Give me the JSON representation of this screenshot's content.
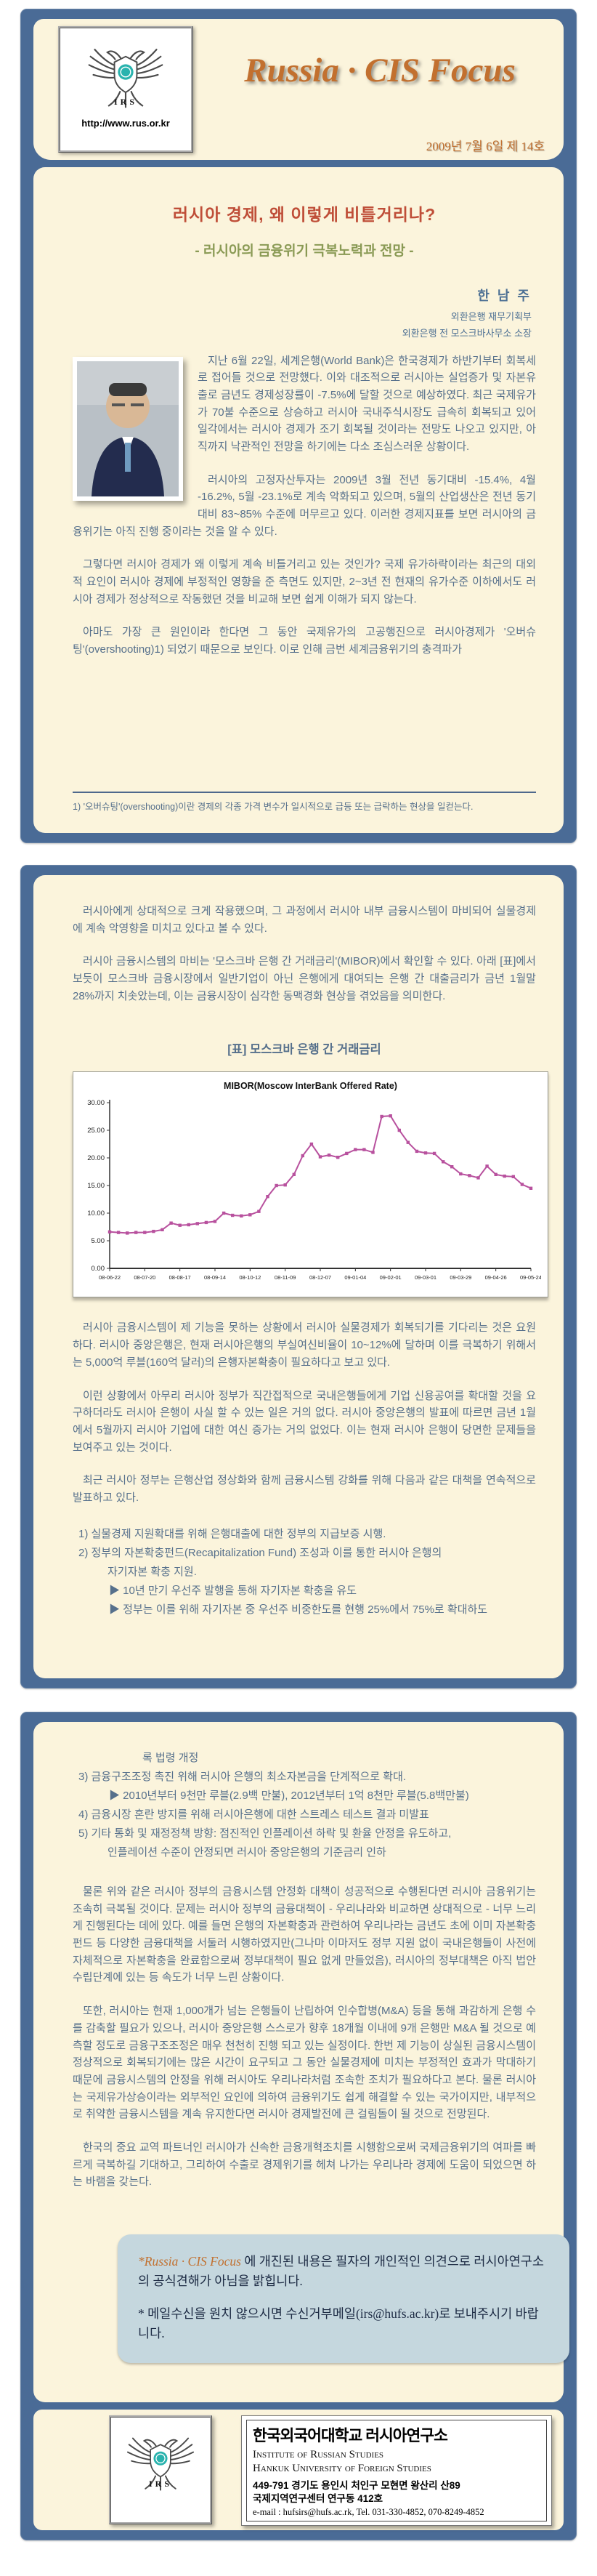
{
  "colors": {
    "card_blue": "#4a6b96",
    "panel_cream": "#fbf4dc",
    "masthead_orange": "#c2702f",
    "article_title_red": "#bf4e38",
    "subtitle_green": "#8a9a55",
    "body_text": "#56708c",
    "chart_line": "#b8519e",
    "notice_bg": "#c5d7de"
  },
  "masthead": {
    "url": "http://www.rus.or.kr",
    "logo_text": "IRS",
    "title": "Russia · CIS Focus",
    "issue": "2009년 7월 6일 제 14호"
  },
  "article": {
    "title": "러시아 경제, 왜 이렇게 비틀거리나?",
    "subtitle": "- 러시아의 금융위기 극복노력과 전망 -",
    "author": {
      "name": "한 남 주",
      "affiliation1": "외환은행 재무기획부",
      "affiliation2": "외환은행 전 모스크바사무소 소장"
    }
  },
  "page1": {
    "paragraphs": [
      "지난 6월 22일, 세계은행(World Bank)은 한국경제가 하반기부터 회복세로 접어들 것으로 전망했다. 이와 대조적으로 러시아는 실업증가 및 자본유출로 금년도 경제성장률이 -7.5%에 달할 것으로 예상하였다. 최근 국제유가가 70불 수준으로 상승하고 러시아 국내주식시장도 급속히 회복되고 있어 일각에서는 러시아 경제가 조기 회복될 것이라는 전망도 나오고 있지만, 아직까지 낙관적인 전망을 하기에는 다소 조심스러운 상황이다.",
      "러시아의 고정자산투자는 2009년 3월 전년  동기대비 -15.4%, 4월 -16.2%, 5월 -23.1%로 계속 악화되고 있으며, 5월의 산업생산은 전년 동기 대비 83~85% 수준에 머무르고 있다. 이러한 경제지표를 보면 러시아의 금융위기는 아직 진행 중이라는 것을 알 수 있다.",
      "그렇다면 러시아 경제가 왜 이렇게 계속 비틀거리고 있는 것인가? 국제 유가하락이라는 최근의 대외적 요인이 러시아 경제에 부정적인 영향을 준 측면도 있지만, 2~3년 전 현재의 유가수준 이하에서도 러시아 경제가 정상적으로 작동했던 것을 비교해 보면 쉽게 이해가 되지 않는다.",
      "아마도 가장 큰 원인이라 한다면 그 동안 국제유가의 고공행진으로 러시아경제가 '오버슈팅'(overshooting)1) 되었기 때문으로 보인다. 이로 인해 금번 세계금융위기의 충격파가"
    ],
    "footnote": "1) '오버슈팅'(overshooting)이란 경제의 각종 가격 변수가 일시적으로 급등 또는 급락하는 현상을 일컫는다."
  },
  "page2": {
    "paragraphs_before": [
      "러시아에게 상대적으로 크게 작용했으며, 그 과정에서 러시아 내부 금융시스템이 마비되어 실물경제에 계속 악영향을 미치고 있다고 볼 수 있다.",
      "러시아 금융시스템의 마비는 '모스크바 은행 간 거래금리'(MIBOR)에서 확인할 수 있다. 아래 [표]에서 보듯이 모스크바 금융시장에서 일반기업이 아닌 은행에게 대여되는 은행 간 대출금리가 금년 1월말 28%까지 치솟았는데, 이는 금융시장이 심각한 동맥경화 현상을 겪었음을 의미한다."
    ],
    "chart_caption": "[표] 모스크바 은행 간 거래금리",
    "paragraphs_after": [
      "러시아 금융시스템이 제 기능을 못하는 상황에서 러시아 실물경제가 회복되기를 기다리는 것은 요원하다. 러시아 중앙은행은, 현재 러시아은행의 부실여신비율이 10~12%에 달하며 이를 극복하기 위해서는 5,000억 루블(160억 달러)의 은행자본확충이 필요하다고 보고 있다.",
      "이런 상황에서 아무리 러시아 정부가 직간접적으로 국내은행들에게 기업 신용공여를 확대할 것을 요구하더라도 러시아 은행이 사실 할 수 있는 일은 거의 없다. 러시아 중앙은행의 발표에 따르면 금년 1월에서 5월까지 러시아 기업에 대한 여신 증가는 거의 없었다. 이는 현재 러시아 은행이 당면한 문제들을 보여주고 있는 것이다.",
      "최근 러시아 정부는 은행산업 정상화와 함께 금융시스템 강화를 위해 다음과 같은 대책을 연속적으로 발표하고 있다."
    ],
    "measures": {
      "item1": "1) 실물경제 지원확대를 위해 은행대출에 대한 정부의 지급보증 시행.",
      "item2a": "2) 정부의 자본확충펀드(Recapitalization Fund) 조성과 이를 통한 러시아 은행의",
      "item2b": "자기자본 확충 지원.",
      "item2_sub1": "▶ 10년 만기 우선주 발행을 통해 자기자본 확충을 유도",
      "item2_sub2": "▶ 정부는 이를 위해 자기자본 중 우선주 비중한도를 현행 25%에서 75%로 확대하도"
    }
  },
  "page3": {
    "measures_cont": {
      "cont_line": "록 법령 개정",
      "item3": "3) 금융구조조정 촉진 위해 러시아 은행의 최소자본금을 단계적으로 확대.",
      "item3_sub": "▶ 2010년부터 9천만 루블(2.9백 만불), 2012년부터 1억 8천만 루블(5.8백만불)",
      "item4": "4) 금융시장 혼란 방지를 위해 러시아은행에 대한 스트레스 테스트 결과 미발표",
      "item5a": "5) 기타 통화 및 재정정책 방향: 점진적인 인플레이션 하락 및 환율 안정을 유도하고,",
      "item5b": "인플레이션 수준이 안정되면 러시아 중앙은행의 기준금리 인하"
    },
    "paragraphs": [
      "물론 위와 같은 러시아 정부의 금융시스템 안정화 대책이 성공적으로 수행된다면 러시아 금융위기는 조속히 극복될 것이다. 문제는 러시아 정부의 금융대책이 - 우리나라와 비교하면 상대적으로 - 너무 느리게 진행된다는 데에 있다. 예를 들면 은행의 자본확충과 관련하여 우리나라는 금년도 초에 이미 자본확충펀드 등 다양한 금융대책을 서둘러 시행하였지만(그나마 이마저도 정부 지원 없이 국내은행들이 사전에 자체적으로 자본확충을 완료함으로써 정부대책이 필요 없게 만들었음), 러시아의 정부대책은 아직 법안 수립단계에 있는 등 속도가 너무 느린 상황이다.",
      "또한, 러시아는 현재 1,000개가 넘는 은행들이 난립하여 인수합병(M&A) 등을 통해 과감하게 은행 수를 감축할 필요가 있으나, 러시아 중앙은행 스스로가 향후 18개월 이내에 9개 은행만 M&A 될 것으로 예측할 정도로 금융구조조정은 매우 천천히 진행 되고 있는 실정이다. 한번 제 기능이 상실된 금융시스템이 정상적으로 회복되기에는 많은 시간이 요구되고 그 동안 실물경제에 미치는 부정적인 효과가 막대하기 때문에 금융시스템의 안정을 위해 러시아도 우리나라처럼 조속한 조치가 필요하다고 본다. 물론 러시아는 국제유가상승이라는 외부적인 요인에 의하여 금융위기도 쉽게 해결할 수 있는 국가이지만, 내부적으로 취약한 금융시스템을 계속 유지한다면 러시아 경제발전에 큰 걸림돌이 될 것으로 전망된다.",
      "한국의 중요 교역 파트너인 러시아가 신속한 금융개혁조치를 시행함으로써 국제금융위기의 여파를 빠르게 극복하길 기대하고, 그리하여 수출로 경제위기를 헤쳐 나가는 우리나라 경제에 도움이 되었으면 하는 바램을 갖는다."
    ],
    "notice": {
      "line1_prefix": "*Russia · CIS Focus",
      "line1_rest": " 에 개진된 내용은 필자의 개인적인 의견으로 러시아연구소의 공식견해가 아님을 밝힙니다.",
      "line2": "* 메일수신을 원치 않으시면 수신거부메일(irs@hufs.ac.kr)로 보내주시기 바랍니다."
    }
  },
  "footer": {
    "org_kr": "한국외국어대학교 러시아연구소",
    "org_en1": "Institute of Russian Studies",
    "org_en2": "Hankuk University of Foreign Studies",
    "address1": "449-791 경기도 용인시 처인구 모현면 왕산리 산89",
    "address2": "국제지역연구센터 연구동 412호",
    "contact": "e-mail : hufsirs@hufs.ac.rk, Tel. 031-330-4852, 070-8249-4852"
  },
  "chart_data": {
    "type": "line",
    "title": "MIBOR(Moscow InterBank Offered Rate)",
    "xlabel": "",
    "ylabel": "",
    "ylim": [
      0,
      30
    ],
    "y_ticks": [
      "0.00",
      "5.00",
      "10.00",
      "15.00",
      "20.00",
      "25.00",
      "30.00"
    ],
    "x_tick_labels": [
      "08-06-22",
      "08-07-20",
      "08-08-17",
      "08-09-14",
      "08-10-12",
      "08-11-09",
      "08-12-07",
      "09-01-04",
      "09-02-01",
      "09-03-01",
      "09-03-29",
      "09-04-26",
      "09-05-24"
    ],
    "x_tick_every": 4,
    "grid": false,
    "legend": "none",
    "series_name": "MIBOR",
    "line_color": "#b8519e",
    "points": [
      {
        "date": "08-06-22",
        "value": 6.6
      },
      {
        "date": "08-06-29",
        "value": 6.5
      },
      {
        "date": "08-07-06",
        "value": 6.4
      },
      {
        "date": "08-07-13",
        "value": 6.5
      },
      {
        "date": "08-07-20",
        "value": 6.5
      },
      {
        "date": "08-07-27",
        "value": 6.7
      },
      {
        "date": "08-08-03",
        "value": 7.0
      },
      {
        "date": "08-08-10",
        "value": 8.2
      },
      {
        "date": "08-08-17",
        "value": 7.8
      },
      {
        "date": "08-08-24",
        "value": 7.9
      },
      {
        "date": "08-08-31",
        "value": 8.1
      },
      {
        "date": "08-09-07",
        "value": 8.3
      },
      {
        "date": "08-09-14",
        "value": 8.5
      },
      {
        "date": "08-09-21",
        "value": 10.0
      },
      {
        "date": "08-09-28",
        "value": 9.6
      },
      {
        "date": "08-10-05",
        "value": 9.5
      },
      {
        "date": "08-10-12",
        "value": 9.7
      },
      {
        "date": "08-10-19",
        "value": 10.3
      },
      {
        "date": "08-10-26",
        "value": 13.0
      },
      {
        "date": "08-11-02",
        "value": 15.0
      },
      {
        "date": "08-11-09",
        "value": 15.1
      },
      {
        "date": "08-11-16",
        "value": 17.0
      },
      {
        "date": "08-11-23",
        "value": 20.4
      },
      {
        "date": "08-11-30",
        "value": 22.5
      },
      {
        "date": "08-12-07",
        "value": 20.2
      },
      {
        "date": "08-12-14",
        "value": 20.5
      },
      {
        "date": "08-12-21",
        "value": 20.1
      },
      {
        "date": "08-12-28",
        "value": 20.8
      },
      {
        "date": "09-01-04",
        "value": 21.5
      },
      {
        "date": "09-01-11",
        "value": 21.5
      },
      {
        "date": "09-01-18",
        "value": 21.0
      },
      {
        "date": "09-01-25",
        "value": 27.5
      },
      {
        "date": "09-02-01",
        "value": 27.6
      },
      {
        "date": "09-02-08",
        "value": 25.0
      },
      {
        "date": "09-02-15",
        "value": 22.8
      },
      {
        "date": "09-02-22",
        "value": 21.2
      },
      {
        "date": "09-03-01",
        "value": 20.9
      },
      {
        "date": "09-03-08",
        "value": 20.8
      },
      {
        "date": "09-03-15",
        "value": 19.3
      },
      {
        "date": "09-03-22",
        "value": 18.4
      },
      {
        "date": "09-03-29",
        "value": 17.1
      },
      {
        "date": "09-04-05",
        "value": 16.8
      },
      {
        "date": "09-04-12",
        "value": 16.4
      },
      {
        "date": "09-04-19",
        "value": 18.5
      },
      {
        "date": "09-04-26",
        "value": 17.0
      },
      {
        "date": "09-05-03",
        "value": 16.7
      },
      {
        "date": "09-05-10",
        "value": 16.6
      },
      {
        "date": "09-05-17",
        "value": 15.2
      },
      {
        "date": "09-05-24",
        "value": 14.5
      }
    ]
  }
}
